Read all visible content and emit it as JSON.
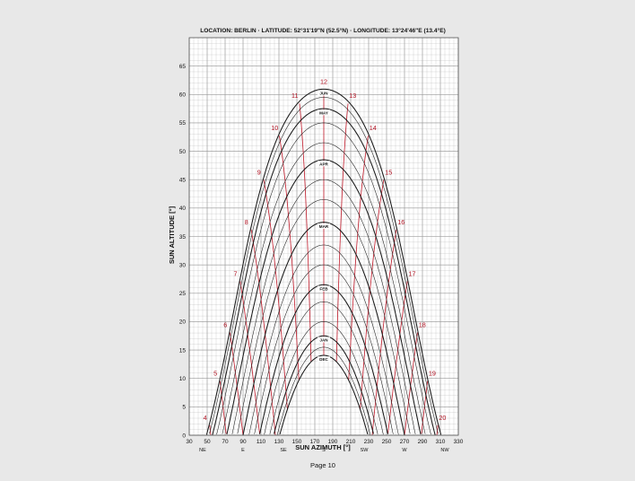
{
  "chart_data": {
    "type": "line",
    "title": "LOCATION: BERLIN · LATITUDE: 52°31'19\"N (52.5°N) · LONGITUDE: 13°24'46\"E (13.4°E)",
    "xlabel": "SUN AZIMUTH [°]",
    "ylabel": "SUN ALTITUDE [°]",
    "xlim": [
      30,
      330
    ],
    "ylim": [
      0,
      70
    ],
    "x_ticks": [
      30,
      50,
      70,
      90,
      110,
      130,
      150,
      170,
      190,
      210,
      230,
      250,
      270,
      290,
      310,
      330
    ],
    "y_ticks": [
      0,
      5,
      10,
      15,
      20,
      25,
      30,
      35,
      40,
      45,
      50,
      55,
      60,
      65
    ],
    "grid": true,
    "minor_grid_x": 5,
    "minor_grid_y": 1,
    "compass": [
      {
        "label": "NE",
        "x": 45
      },
      {
        "label": "E",
        "x": 90
      },
      {
        "label": "SE",
        "x": 135
      },
      {
        "label": "S",
        "x": 180
      },
      {
        "label": "SW",
        "x": 225
      },
      {
        "label": "W",
        "x": 270
      },
      {
        "label": "NW",
        "x": 315
      }
    ],
    "latitude_deg": 52.5,
    "series": [
      {
        "name": "JUN",
        "declination": 23.44,
        "labeled": true
      },
      {
        "name": "",
        "declination": 22.0,
        "labeled": false
      },
      {
        "name": "MAY",
        "declination": 20.0,
        "labeled": true
      },
      {
        "name": "",
        "declination": 17.5,
        "labeled": false
      },
      {
        "name": "",
        "declination": 14.0,
        "labeled": false
      },
      {
        "name": "APR",
        "declination": 11.0,
        "labeled": true
      },
      {
        "name": "",
        "declination": 7.5,
        "labeled": false
      },
      {
        "name": "",
        "declination": 4.0,
        "labeled": false
      },
      {
        "name": "MAR",
        "declination": 0.0,
        "labeled": true
      },
      {
        "name": "",
        "declination": -4.0,
        "labeled": false
      },
      {
        "name": "",
        "declination": -7.5,
        "labeled": false
      },
      {
        "name": "FEB",
        "declination": -11.0,
        "labeled": true
      },
      {
        "name": "",
        "declination": -14.0,
        "labeled": false
      },
      {
        "name": "",
        "declination": -17.5,
        "labeled": false
      },
      {
        "name": "JAN",
        "declination": -20.0,
        "labeled": true
      },
      {
        "name": "",
        "declination": -22.0,
        "labeled": false
      },
      {
        "name": "DEC",
        "declination": -23.44,
        "labeled": true
      }
    ],
    "hour_lines": [
      {
        "label": "4",
        "hour": 4
      },
      {
        "label": "5",
        "hour": 5
      },
      {
        "label": "6",
        "hour": 6
      },
      {
        "label": "7",
        "hour": 7
      },
      {
        "label": "8",
        "hour": 8
      },
      {
        "label": "9",
        "hour": 9
      },
      {
        "label": "10",
        "hour": 10
      },
      {
        "label": "11",
        "hour": 11
      },
      {
        "label": "12",
        "hour": 12
      },
      {
        "label": "13",
        "hour": 13
      },
      {
        "label": "14",
        "hour": 14
      },
      {
        "label": "15",
        "hour": 15
      },
      {
        "label": "16",
        "hour": 16
      },
      {
        "label": "17",
        "hour": 17
      },
      {
        "label": "18",
        "hour": 18
      },
      {
        "label": "19",
        "hour": 19
      },
      {
        "label": "20",
        "hour": 20
      }
    ],
    "colors": {
      "background": "#e8e8e8",
      "plot_background": "#ffffff",
      "grid": "#bdbdbd",
      "curve": "#1a1a1a",
      "hour_line": "#c01a2a",
      "hour_label": "#b01020",
      "text": "#111111"
    }
  },
  "footer": {
    "page_label": "Page 10"
  }
}
